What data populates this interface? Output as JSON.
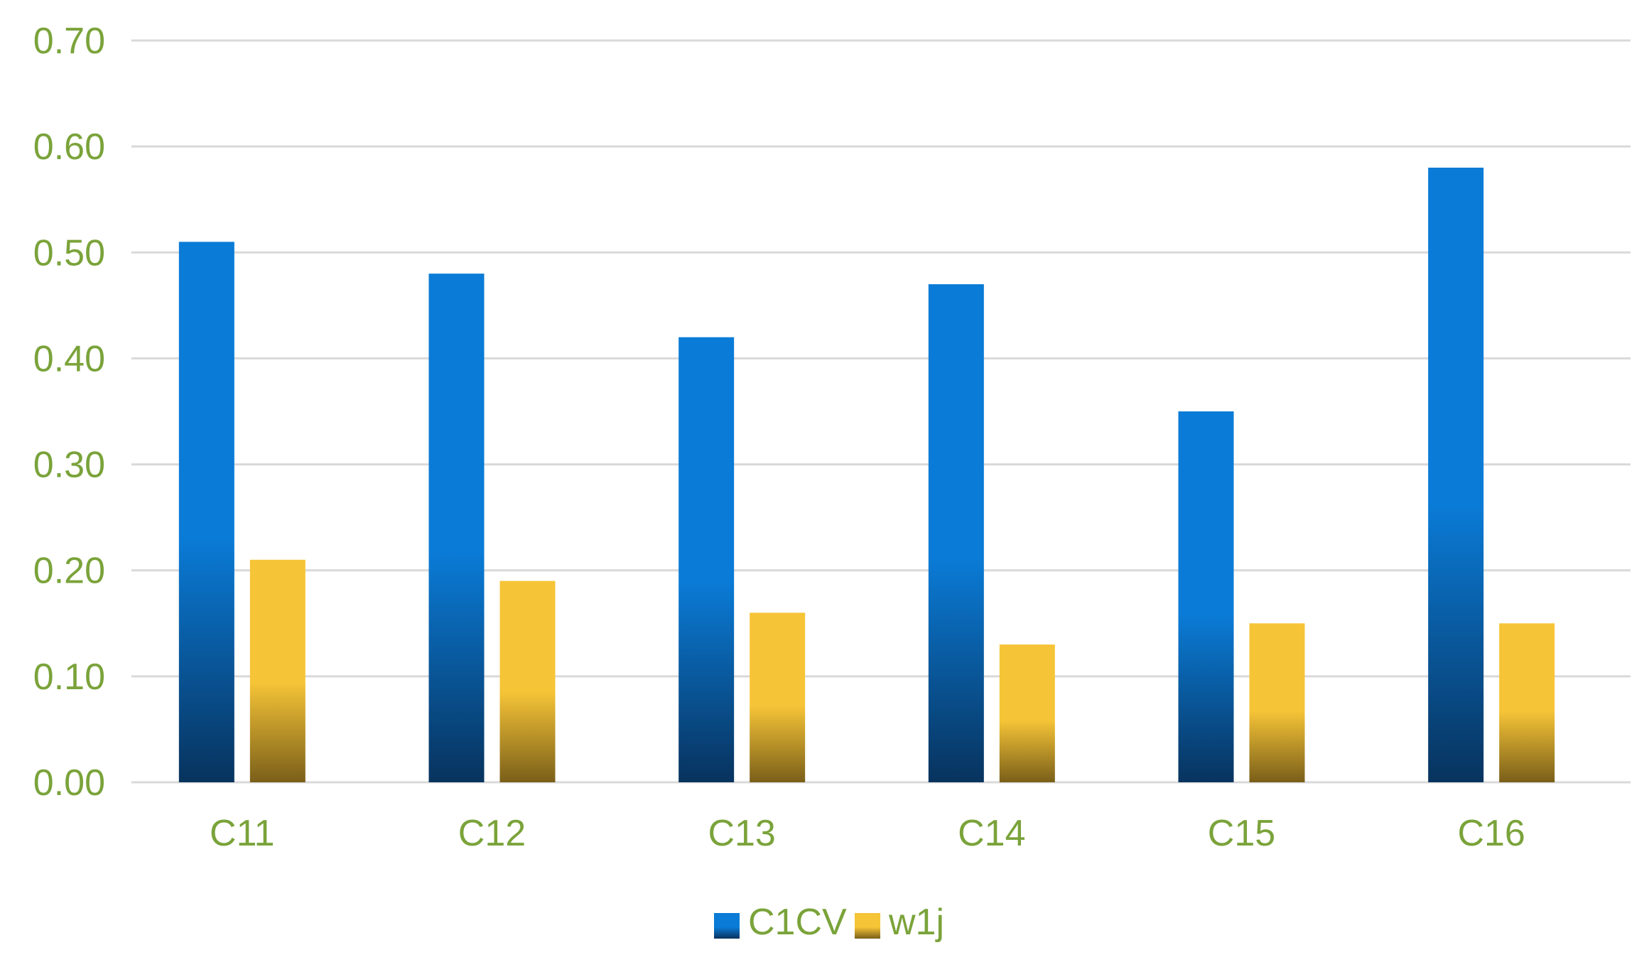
{
  "chart_data": {
    "type": "bar",
    "categories": [
      "C11",
      "C12",
      "C13",
      "C14",
      "C15",
      "C16"
    ],
    "series": [
      {
        "name": "C1CV",
        "values": [
          0.51,
          0.48,
          0.42,
          0.47,
          0.35,
          0.58
        ],
        "color_top": "#0a7bd6",
        "color_bottom": "#08335e"
      },
      {
        "name": "w1j",
        "values": [
          0.21,
          0.19,
          0.16,
          0.13,
          0.15,
          0.15
        ],
        "color_top": "#f6c437",
        "color_bottom": "#7a5f19"
      }
    ],
    "y_ticks": [
      "0.00",
      "0.10",
      "0.20",
      "0.30",
      "0.40",
      "0.50",
      "0.60",
      "0.70"
    ],
    "ylim": [
      0,
      0.7
    ],
    "grid": true,
    "legend_position": "bottom",
    "text_color": "#7aa33a",
    "grid_color": "#d9d9d9"
  }
}
